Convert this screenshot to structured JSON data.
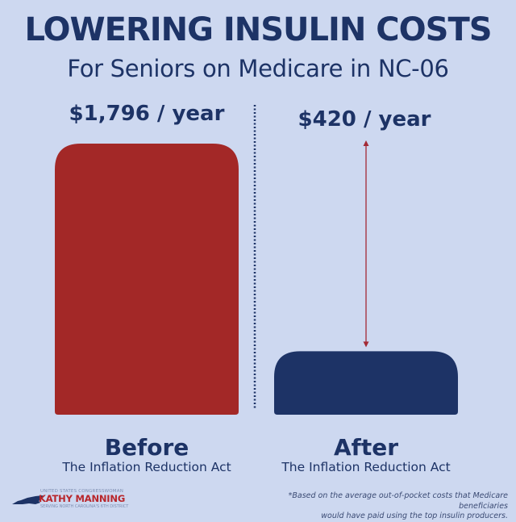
{
  "header": {
    "title": "LOWERING INSULIN COSTS",
    "subtitle": "For Seniors on Medicare in NC-06"
  },
  "chart_data": {
    "type": "bar",
    "title": "LOWERING INSULIN COSTS",
    "subtitle": "For Seniors on Medicare in NC-06",
    "categories": [
      "Before",
      "After"
    ],
    "category_sublabels": [
      "The Inflation Reduction Act",
      "The Inflation Reduction Act"
    ],
    "values": [
      1796,
      420
    ],
    "value_labels": [
      "$1,796 / year",
      "$420 / year"
    ],
    "unit": "USD per year",
    "colors": [
      "#a32827",
      "#1d3366"
    ],
    "ylim": [
      0,
      1796
    ],
    "xlabel": "",
    "ylabel": "",
    "grid": false,
    "annotations": [
      "dotted divider between bars",
      "double-headed arrow indicating reduction from $1,796 to $420"
    ]
  },
  "colors": {
    "background": "#cdd8f0",
    "text": "#1d3366",
    "before_bar": "#a32827",
    "after_bar": "#1d3366",
    "arrow": "#a32a35"
  },
  "branding": {
    "top_line": "UNITED STATES CONGRESSWOMAN",
    "name": "KATHY MANNING",
    "bottom_line": "SERVING NORTH CAROLINA'S 6TH DISTRICT"
  },
  "footnote": {
    "line1": "*Based on the average out-of-pocket costs that Medicare beneficiaries",
    "line2": "would have paid using the top insulin producers."
  }
}
